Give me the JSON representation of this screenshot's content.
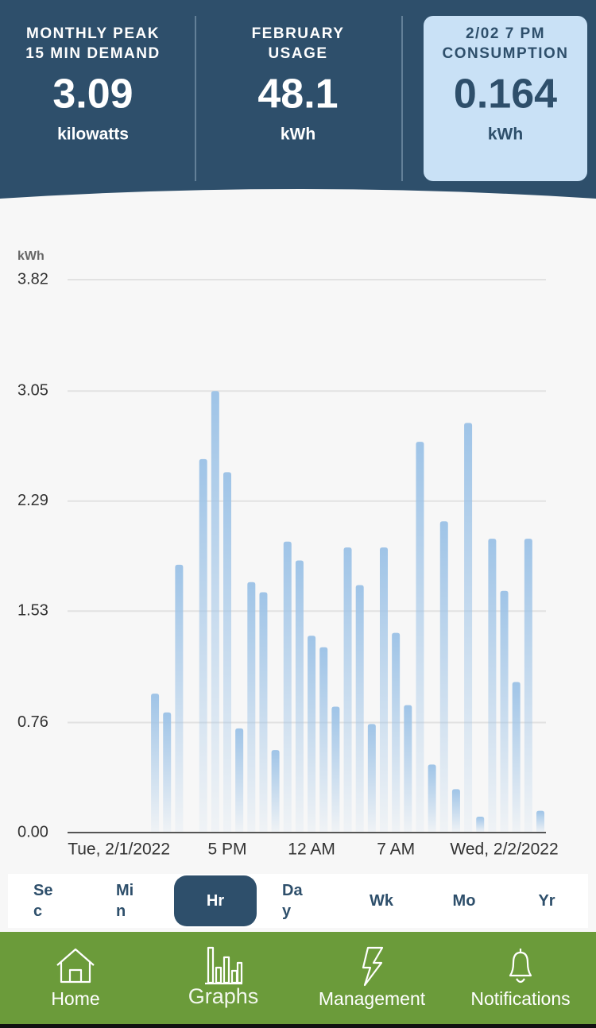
{
  "header": {
    "stats": [
      {
        "label": [
          "MONTHLY PEAK",
          "15 MIN DEMAND"
        ],
        "value": 3.09,
        "unit": "kilowatts"
      },
      {
        "label": [
          "FEBRUARY",
          "USAGE"
        ],
        "value": 48.1,
        "unit": "kWh"
      },
      {
        "label": [
          "2/02 7 PM",
          "CONSUMPTION"
        ],
        "value": 0.164,
        "unit": "kWh"
      }
    ],
    "highlighted": 2
  },
  "chart_data": {
    "type": "bar",
    "y_label": "kWh",
    "categories": [
      null,
      null,
      null,
      null,
      "Tue, 2/1/2022",
      null,
      null,
      null,
      null,
      null,
      null,
      null,
      null,
      "5 PM",
      null,
      null,
      null,
      null,
      null,
      null,
      "12 AM",
      null,
      null,
      null,
      null,
      null,
      null,
      "7 AM",
      null,
      null,
      null,
      null,
      null,
      null,
      null,
      null,
      "Wed, 2/2/2022",
      null,
      null,
      null
    ],
    "values": [
      null,
      null,
      null,
      null,
      null,
      null,
      null,
      0.96,
      0.83,
      1.85,
      0,
      2.58,
      3.05,
      2.49,
      0.72,
      1.73,
      1.66,
      0.57,
      2.01,
      1.88,
      1.36,
      1.28,
      0.87,
      1.97,
      1.71,
      0.75,
      1.97,
      1.38,
      0.88,
      2.7,
      0.47,
      2.15,
      0.3,
      2.83,
      0.11,
      2.03,
      1.67,
      1.04,
      2.03,
      0.15
    ],
    "color": "#9fc4e7",
    "ylim": [
      0,
      3.82
    ],
    "yticks": [
      {
        "value": 0,
        "label": "0.00"
      },
      0.76,
      1.53,
      2.29,
      3.05,
      3.82
    ],
    "grid": true
  },
  "tabs": {
    "items": [
      "Sec",
      "Min",
      "Hr",
      "Day",
      "Wk",
      "Mo",
      "Yr"
    ],
    "selected": 2
  },
  "nav": {
    "items": [
      "Home",
      "Graphs",
      "Management",
      "Notifications"
    ],
    "selected": 1
  }
}
